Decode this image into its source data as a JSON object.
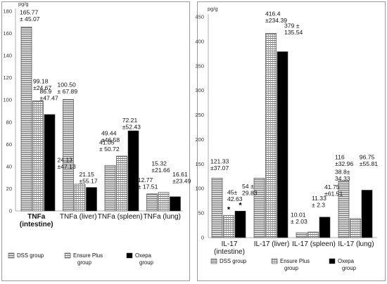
{
  "chart_data": [
    {
      "type": "bar",
      "unit": "pg/g",
      "ylim": [
        0,
        180
      ],
      "yticks": [
        0,
        20,
        40,
        60,
        80,
        100,
        120,
        140,
        160,
        180
      ],
      "categories": [
        [
          "TNFa",
          "(intestine)"
        ],
        [
          "TNFa (liver)"
        ],
        [
          "TNFa (spleen)"
        ],
        [
          "TNFa (lung)"
        ]
      ],
      "category_bold": [
        true,
        false,
        false,
        false
      ],
      "series": [
        {
          "name": "DSS group",
          "pattern": "hlines",
          "values": [
            165.77,
            100.5,
            41.05,
            15.32
          ]
        },
        {
          "name": "Ensure Plus group",
          "pattern": "grid",
          "values": [
            99.18,
            24.13,
            49.44,
            16.61
          ]
        },
        {
          "name": "Oxepa group",
          "pattern": "solid",
          "values": [
            86.9,
            21.15,
            72.21,
            12.77
          ]
        }
      ],
      "data_labels": [
        {
          "lines": [
            "165.77",
            "± 45.07"
          ],
          "x": 0.1,
          "y": 177,
          "anchor": "start"
        },
        {
          "lines": [
            "99.18",
            "±24.67"
          ],
          "x": 0.42,
          "y": 115,
          "anchor": "start"
        },
        {
          "lines": [
            "86.9",
            "±47.47"
          ],
          "x": 0.58,
          "y": 106,
          "anchor": "start"
        },
        {
          "lines": [
            "100.50",
            "± 67.89"
          ],
          "x": 1.0,
          "y": 112,
          "anchor": "start"
        },
        {
          "lines": [
            "24.13",
            "±47.13"
          ],
          "x": 1.0,
          "y": 44,
          "anchor": "start"
        },
        {
          "lines": [
            "21.15",
            "±55.17"
          ],
          "x": 1.52,
          "y": 31,
          "anchor": "start"
        },
        {
          "lines": [
            "41.05",
            "± 50.72"
          ],
          "x": 2.0,
          "y": 60,
          "anchor": "start"
        },
        {
          "lines": [
            "49.44",
            "±46.58"
          ],
          "x": 2.05,
          "y": 68,
          "anchor": "start"
        },
        {
          "lines": [
            "72.21",
            "±52.43"
          ],
          "x": 2.55,
          "y": 80,
          "anchor": "start"
        },
        {
          "lines": [
            "15.32",
            "±21.66"
          ],
          "x": 3.25,
          "y": 41,
          "anchor": "start"
        },
        {
          "lines": [
            "12.77",
            "± 17.51"
          ],
          "x": 2.92,
          "y": 26,
          "anchor": "start"
        },
        {
          "lines": [
            "16.61",
            "±23.49"
          ],
          "x": 3.75,
          "y": 31,
          "anchor": "start"
        }
      ],
      "legend": [
        {
          "pattern": "hlines",
          "lines": [
            "DSS group"
          ]
        },
        {
          "pattern": "grid",
          "lines": [
            "Ensure Plus",
            "group"
          ]
        },
        {
          "pattern": "solid",
          "lines": [
            "Oxepa",
            "group"
          ]
        }
      ]
    },
    {
      "type": "bar",
      "unit": "pg/g",
      "ylim": [
        0,
        450
      ],
      "yticks": [
        0,
        50,
        100,
        150,
        200,
        250,
        300,
        350,
        400,
        450
      ],
      "categories": [
        [
          "IL-17",
          "(intestine)"
        ],
        [
          "IL-17 (liver)"
        ],
        [
          "IL-17 (spleen)"
        ],
        [
          "IL-17 (lung)"
        ]
      ],
      "category_bold": [
        false,
        false,
        false,
        false
      ],
      "series": [
        {
          "name": "DSS group",
          "pattern": "hlines",
          "values": [
            121.33,
            121.33,
            10.01,
            116
          ]
        },
        {
          "name": "Ensure Plus group",
          "pattern": "grid",
          "values": [
            45,
            416.4,
            11.33,
            38.8
          ]
        },
        {
          "name": "Oxepa group",
          "pattern": "solid",
          "values": [
            54,
            379,
            41.75,
            96.75
          ]
        }
      ],
      "data_labels": [
        {
          "lines": [
            "121.33",
            "±37.07"
          ],
          "x": 0.05,
          "y": 151,
          "anchor": "start"
        },
        {
          "lines": [
            "45±",
            "42.63"
          ],
          "x": 0.45,
          "y": 88,
          "anchor": "start"
        },
        {
          "lines": [
            "54 ±",
            "29.83"
          ],
          "x": 0.8,
          "y": 100,
          "anchor": "start"
        },
        {
          "lines": [
            "416.4",
            "±234.39"
          ],
          "x": 1.35,
          "y": 452,
          "anchor": "start"
        },
        {
          "lines": [
            "379 ±",
            "135.54"
          ],
          "x": 1.8,
          "y": 428,
          "anchor": "start"
        },
        {
          "lines": [
            "10.01",
            "± 2.03"
          ],
          "x": 1.95,
          "y": 42,
          "anchor": "start"
        },
        {
          "lines": [
            "11.33",
            "± 2.3"
          ],
          "x": 2.45,
          "y": 76,
          "anchor": "start"
        },
        {
          "lines": [
            "41.75",
            "±61.51"
          ],
          "x": 2.75,
          "y": 99,
          "anchor": "start"
        },
        {
          "lines": [
            "116",
            "±32.96"
          ],
          "x": 3.0,
          "y": 160,
          "anchor": "start"
        },
        {
          "lines": [
            "38.8±",
            "34.33"
          ],
          "x": 3.0,
          "y": 130,
          "anchor": "start"
        },
        {
          "lines": [
            "96.75",
            "±55.81"
          ],
          "x": 3.58,
          "y": 160,
          "anchor": "start"
        }
      ],
      "stars": [
        {
          "group": 0,
          "series": 1,
          "text": "*"
        },
        {
          "group": 0,
          "series": 2,
          "text": "*"
        }
      ],
      "legend": [
        {
          "pattern": "hlines",
          "lines": [
            "DSS group"
          ]
        },
        {
          "pattern": "grid",
          "lines": [
            "Ensure Plus",
            "group"
          ]
        },
        {
          "pattern": "solid",
          "lines": [
            "Oxepa",
            "group"
          ]
        }
      ]
    }
  ]
}
